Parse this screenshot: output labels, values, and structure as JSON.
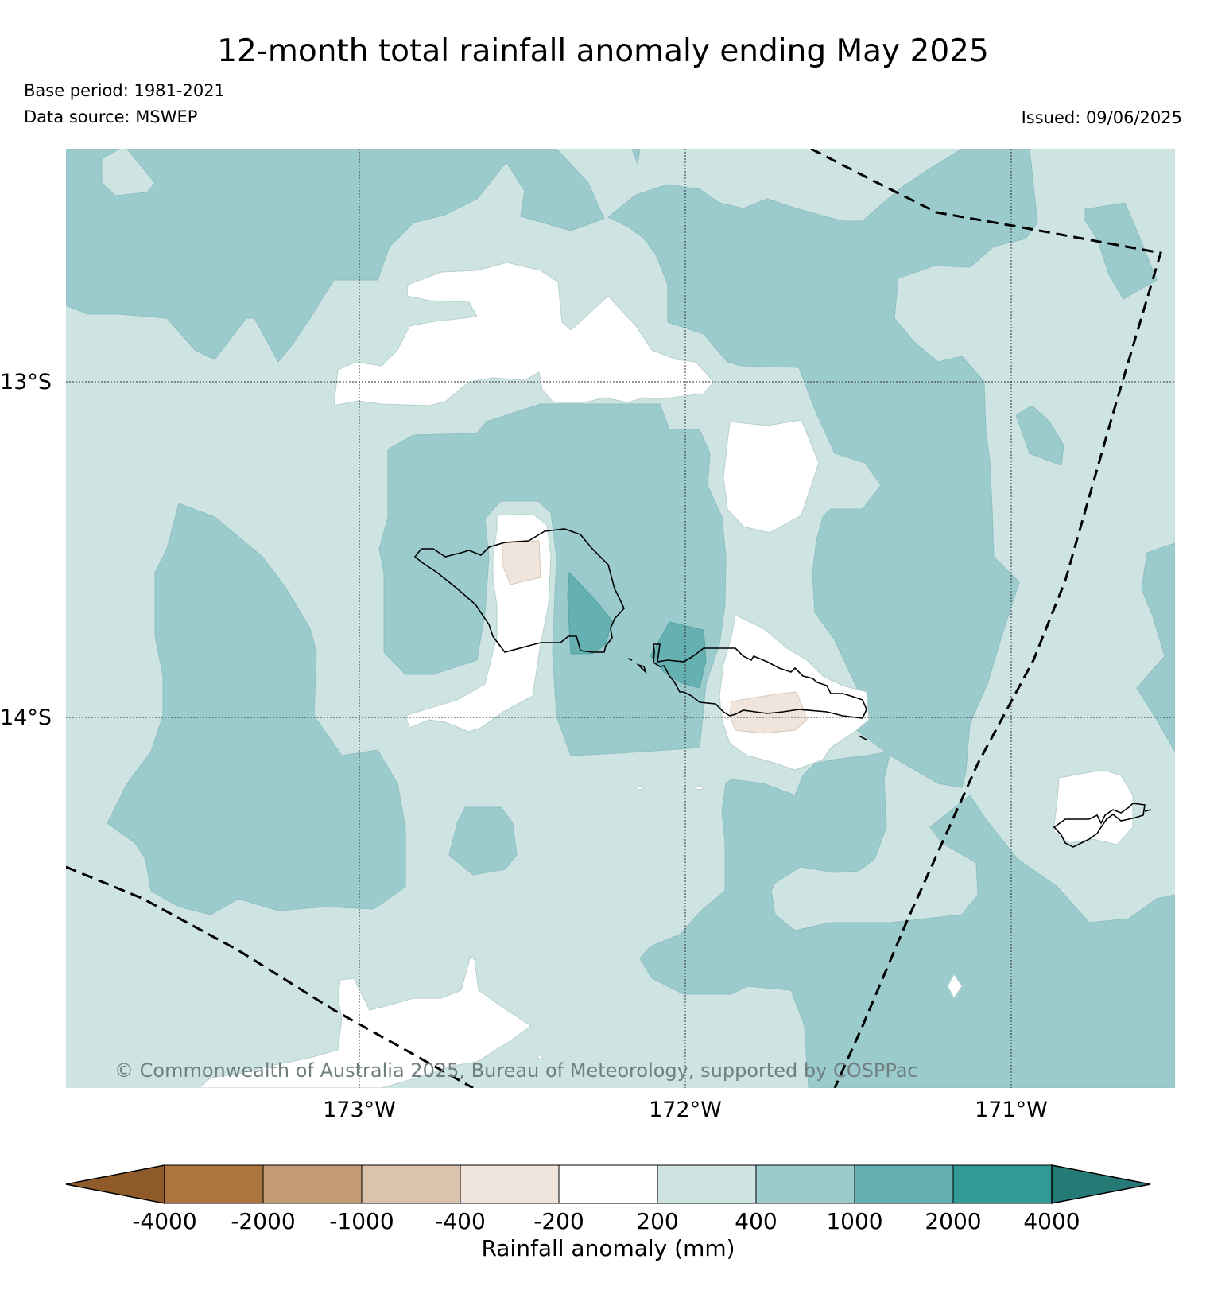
{
  "header": {
    "title": "12-month total rainfall anomaly ending May 2025",
    "base_period": "Base period: 1981-2021",
    "data_source": "Data source: MSWEP",
    "issued": "Issued: 09/06/2025"
  },
  "map": {
    "lat_labels": [
      "13°S",
      "14°S"
    ],
    "lon_labels": [
      "173°W",
      "172°W",
      "171°W"
    ],
    "copyright": "© Commonwealth of Australia 2025, Bureau of Meteorology, supported by COSPPac"
  },
  "colorbar": {
    "label": "Rainfall anomaly (mm)",
    "ticks": [
      "-4000",
      "-2000",
      "-1000",
      "-400",
      "-200",
      "200",
      "400",
      "1000",
      "2000",
      "4000"
    ],
    "colors": [
      "#8f5b2a",
      "#ac743e",
      "#c49a72",
      "#dcc3ad",
      "#efe5dc",
      "#ffffff",
      "#cde4e3",
      "#9bcbcc",
      "#65b1b2",
      "#329a96",
      "#267a76"
    ]
  },
  "colors": {
    "bg_200_400": "#cde4e3",
    "c_400_1000": "#9bcbcc",
    "c_1000_2000": "#65b1b2",
    "c_m400_m200": "#efe5dc",
    "c_white": "#ffffff"
  }
}
